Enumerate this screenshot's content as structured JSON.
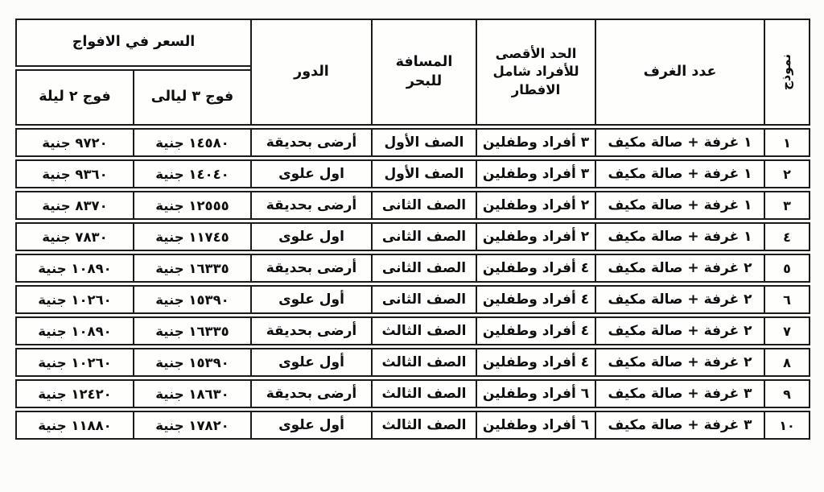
{
  "document": {
    "type": "scanned-price-table",
    "language": "ar",
    "direction": "rtl"
  },
  "colors": {
    "border": "#1b1b1b",
    "text": "#0e0e0e",
    "background": "#fcfcfa",
    "cell_background": "#fefefd"
  },
  "table": {
    "headers": {
      "model": "نموذج",
      "rooms": "عدد الغرف",
      "capacity": "الحد الأقصى\nللأفراد شامل\nالافطار",
      "distance": "المسافة للبحر",
      "floor": "الدور",
      "price_group": "السعر في الافواج",
      "price3": "فوج ٣ ليالى",
      "price2": "فوج ٢ ليلة"
    },
    "rows": [
      {
        "model": "١",
        "rooms": "١ غرفة + صالة مكيف",
        "capacity": "٣ أفراد وطفلين",
        "distance": "الصف الأول",
        "floor": "أرضى بحديقة",
        "price3": "١٤٥٨٠ جنية",
        "price2": "٩٧٢٠ جنية"
      },
      {
        "model": "٢",
        "rooms": "١ غرفة + صالة مكيف",
        "capacity": "٣ أفراد وطفلين",
        "distance": "الصف الأول",
        "floor": "اول علوى",
        "price3": "١٤٠٤٠ جنية",
        "price2": "٩٣٦٠ جنية"
      },
      {
        "model": "٣",
        "rooms": "١ غرفة + صالة مكيف",
        "capacity": "٢ أفراد وطفلين",
        "distance": "الصف الثانى",
        "floor": "أرضى بحديقة",
        "price3": "١٢٥٥٥ جنية",
        "price2": "٨٣٧٠ جنية"
      },
      {
        "model": "٤",
        "rooms": "١ غرفة + صالة مكيف",
        "capacity": "٢ أفراد وطفلين",
        "distance": "الصف الثانى",
        "floor": "اول علوى",
        "price3": "١١٧٤٥ جنية",
        "price2": "٧٨٣٠ جنية"
      },
      {
        "model": "٥",
        "rooms": "٢ غرفة + صالة مكيف",
        "capacity": "٤ أفراد وطفلين",
        "distance": "الصف الثانى",
        "floor": "أرضى بحديقة",
        "price3": "١٦٣٣٥ جنية",
        "price2": "١٠٨٩٠ جنية"
      },
      {
        "model": "٦",
        "rooms": "٢ غرفة + صالة مكيف",
        "capacity": "٤ أفراد وطفلين",
        "distance": "الصف الثانى",
        "floor": "أول علوى",
        "price3": "١٥٣٩٠ جنية",
        "price2": "١٠٢٦٠ جنية"
      },
      {
        "model": "٧",
        "rooms": "٢ غرفة + صالة مكيف",
        "capacity": "٤ أفراد وطفلين",
        "distance": "الصف الثالث",
        "floor": "أرضى بحديقة",
        "price3": "١٦٣٣٥ جنية",
        "price2": "١٠٨٩٠ جنية"
      },
      {
        "model": "٨",
        "rooms": "٢ غرفة + صالة مكيف",
        "capacity": "٤ أفراد وطفلين",
        "distance": "الصف الثالث",
        "floor": "أول علوى",
        "price3": "١٥٣٩٠ جنية",
        "price2": "١٠٢٦٠ جنية"
      },
      {
        "model": "٩",
        "rooms": "٣ غرفة + صالة مكيف",
        "capacity": "٦ أفراد وطفلين",
        "distance": "الصف الثالث",
        "floor": "أرضى بحديقة",
        "price3": "١٨٦٣٠ جنية",
        "price2": "١٢٤٢٠ جنية"
      },
      {
        "model": "١٠",
        "rooms": "٣ غرفة + صالة مكيف",
        "capacity": "٦ أفراد وطفلين",
        "distance": "الصف الثالث",
        "floor": "أول علوى",
        "price3": "١٧٨٢٠ جنية",
        "price2": "١١٨٨٠ جنية"
      }
    ]
  }
}
